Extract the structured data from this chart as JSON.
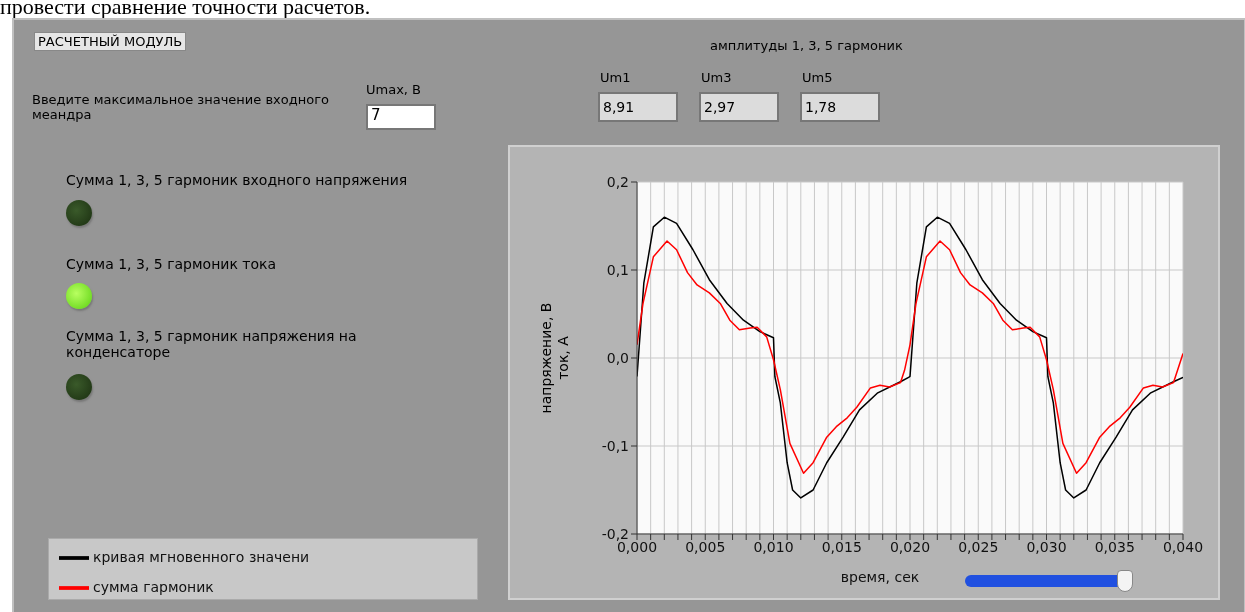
{
  "chart_data": {
    "type": "line",
    "xlabel": "время, сек",
    "ylabel": "напряжение, В\nток, А",
    "annotations": [
      "провести сравнение точности расчетов.",
      "РАСЧЕТНЫЙ МОДУЛЬ",
      "Введите максимальное значение входного меандра",
      "Umax, В",
      "7",
      "амплитуды 1, 3, 5 гармоник",
      "Um1",
      "8,91",
      "Um3",
      "2,97",
      "Um5",
      "1,78",
      "Сумма 1, 3, 5 гармоник входного напряжения",
      "Сумма 1, 3, 5 гармоник тока",
      "Сумма 1, 3, 5 гармоник напряжения на конденсаторе"
    ],
    "xlim": [
      0,
      0.04
    ],
    "ylim": [
      -0.2,
      0.2
    ],
    "xticks": [
      {
        "value": 0,
        "label": "0,000"
      },
      {
        "value": 0.001,
        "label": null
      },
      {
        "value": 0.002,
        "label": null
      },
      {
        "value": 0.003,
        "label": null
      },
      {
        "value": 0.004,
        "label": null
      },
      {
        "value": 0.005,
        "label": "0,005"
      },
      {
        "value": 0.006,
        "label": null
      },
      {
        "value": 0.007,
        "label": null
      },
      {
        "value": 0.008,
        "label": null
      },
      {
        "value": 0.009,
        "label": null
      },
      {
        "value": 0.01,
        "label": "0,010"
      },
      {
        "value": 0.011,
        "label": null
      },
      {
        "value": 0.012,
        "label": null
      },
      {
        "value": 0.013,
        "label": null
      },
      {
        "value": 0.014,
        "label": null
      },
      {
        "value": 0.015,
        "label": "0,015"
      },
      {
        "value": 0.016,
        "label": null
      },
      {
        "value": 0.017,
        "label": null
      },
      {
        "value": 0.018,
        "label": null
      },
      {
        "value": 0.019,
        "label": null
      },
      {
        "value": 0.02,
        "label": "0,020"
      },
      {
        "value": 0.021,
        "label": null
      },
      {
        "value": 0.022,
        "label": null
      },
      {
        "value": 0.023,
        "label": null
      },
      {
        "value": 0.024,
        "label": null
      },
      {
        "value": 0.025,
        "label": "0,025"
      },
      {
        "value": 0.026,
        "label": null
      },
      {
        "value": 0.027,
        "label": null
      },
      {
        "value": 0.028,
        "label": null
      },
      {
        "value": 0.029,
        "label": null
      },
      {
        "value": 0.03,
        "label": "0,030"
      },
      {
        "value": 0.031,
        "label": null
      },
      {
        "value": 0.032,
        "label": null
      },
      {
        "value": 0.033,
        "label": null
      },
      {
        "value": 0.034,
        "label": null
      },
      {
        "value": 0.035,
        "label": "0,035"
      },
      {
        "value": 0.036,
        "label": null
      },
      {
        "value": 0.037,
        "label": null
      },
      {
        "value": 0.038,
        "label": null
      },
      {
        "value": 0.039,
        "label": null
      },
      {
        "value": 0.04,
        "label": "0,040"
      }
    ],
    "yticks": [
      {
        "value": -0.2,
        "label": "-0,2"
      },
      {
        "value": -0.1,
        "label": "-0,1"
      },
      {
        "value": 0,
        "label": "0,0"
      },
      {
        "value": 0.1,
        "label": "0,1"
      },
      {
        "value": 0.2,
        "label": "0,2"
      }
    ],
    "grid": true,
    "legend": "bottom left",
    "series": [
      {
        "name": "кривая мгновенного значени",
        "color": "#000000",
        "x": [
          0,
          0.0005,
          0.0012,
          0.002,
          0.0029,
          0.0041,
          0.0053,
          0.0066,
          0.0078,
          0.009,
          0.01,
          0.0101,
          0.0105,
          0.011,
          0.0114,
          0.012,
          0.0129,
          0.0139,
          0.0151,
          0.0163,
          0.0176,
          0.0193,
          0.0199,
          0.02,
          0.0205,
          0.0212,
          0.022,
          0.0229,
          0.0241,
          0.0253,
          0.0266,
          0.0278,
          0.029,
          0.03,
          0.0301,
          0.0305,
          0.031,
          0.0314,
          0.032,
          0.0329,
          0.0339,
          0.0351,
          0.0363,
          0.0376,
          0.0393,
          0.04
        ],
        "values": [
          -0.021,
          0.085,
          0.149,
          0.16,
          0.153,
          0.123,
          0.089,
          0.062,
          0.043,
          0.03,
          0.023,
          -0.021,
          -0.051,
          -0.119,
          -0.15,
          -0.159,
          -0.15,
          -0.119,
          -0.09,
          -0.059,
          -0.04,
          -0.027,
          -0.022,
          -0.021,
          0.085,
          0.149,
          0.16,
          0.153,
          0.123,
          0.089,
          0.062,
          0.043,
          0.03,
          0.023,
          -0.021,
          -0.051,
          -0.119,
          -0.15,
          -0.159,
          -0.15,
          -0.119,
          -0.09,
          -0.059,
          -0.04,
          -0.027,
          -0.022
        ]
      },
      {
        "name": "сумма гармоник",
        "color": "#ff0000",
        "x": [
          0,
          0.00044,
          0.0012,
          0.0022,
          0.0029,
          0.0037,
          0.0044,
          0.0053,
          0.0061,
          0.0068,
          0.0075,
          0.0083,
          0.0088,
          0.0095,
          0.01,
          0.0105,
          0.0112,
          0.0122,
          0.0129,
          0.0139,
          0.0146,
          0.0154,
          0.0161,
          0.0171,
          0.0178,
          0.0185,
          0.0193,
          0.0196,
          0.02,
          0.02044,
          0.0212,
          0.0222,
          0.0229,
          0.0237,
          0.0244,
          0.0253,
          0.0261,
          0.0268,
          0.0275,
          0.0283,
          0.0288,
          0.0295,
          0.03,
          0.0305,
          0.0312,
          0.0322,
          0.0329,
          0.0339,
          0.0346,
          0.0354,
          0.0361,
          0.0371,
          0.0378,
          0.0385,
          0.0393,
          0.0396,
          0.04
        ],
        "values": [
          0.015,
          0.062,
          0.115,
          0.133,
          0.123,
          0.097,
          0.083,
          0.074,
          0.062,
          0.043,
          0.032,
          0.034,
          0.035,
          0.024,
          -0.002,
          -0.036,
          -0.097,
          -0.131,
          -0.119,
          -0.09,
          -0.078,
          -0.068,
          -0.056,
          -0.034,
          -0.031,
          -0.033,
          -0.028,
          -0.014,
          0.015,
          0.062,
          0.115,
          0.133,
          0.123,
          0.097,
          0.083,
          0.074,
          0.062,
          0.043,
          0.032,
          0.034,
          0.035,
          0.024,
          -0.002,
          -0.036,
          -0.097,
          -0.131,
          -0.119,
          -0.09,
          -0.078,
          -0.068,
          -0.056,
          -0.034,
          -0.031,
          -0.033,
          -0.028,
          -0.014,
          0.005
        ]
      }
    ]
  }
}
